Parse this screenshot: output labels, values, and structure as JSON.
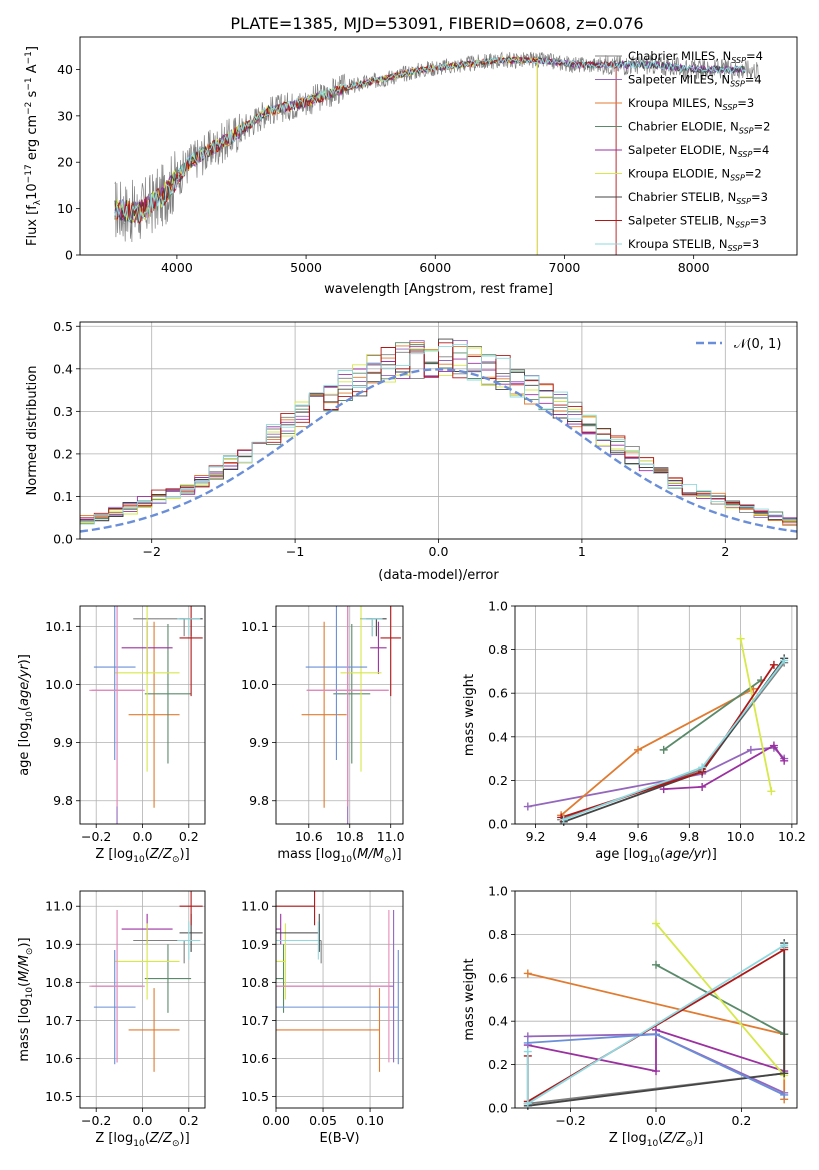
{
  "title": "PLATE=1385, MJD=53091, FIBERID=0608, z=0.076",
  "colors": {
    "Chabrier MILES": "#808080",
    "Salpeter MILES": "#9467bd",
    "Kroupa MILES": "#e07b30",
    "Chabrier ELODIE": "#5a8a6a",
    "Salpeter ELODIE": "#9b30a0",
    "Kroupa ELODIE": "#d6e84a",
    "Chabrier STELIB": "#444444",
    "Salpeter STELIB": "#b01818",
    "Kroupa STELIB": "#8fd9e0",
    "data": "#808080",
    "normal": "#6a8fd8",
    "extra_blue": "#6a8fd8",
    "extra_pink": "#e88ab8"
  },
  "chart_data": [
    {
      "type": "line",
      "id": "spectrum",
      "xlabel": "wavelength [Angstrom, rest frame]",
      "ylabel": "Flux [f$_\\lambda$10$^{-17}$ erg cm$^{-2}$ s$^{-1}$ A$^{-1}$]",
      "ylabel_text": "Flux [fλ10⁻¹⁷ erg cm⁻² s⁻¹ A⁻¹]",
      "xlim": [
        3250,
        8800
      ],
      "ylim": [
        0,
        47
      ],
      "xticks": [
        4000,
        5000,
        6000,
        7000,
        8000
      ],
      "yticks": [
        0,
        10,
        20,
        30,
        40
      ],
      "continuum_x": [
        3500,
        3700,
        3900,
        4100,
        4400,
        4700,
        5000,
        5300,
        5600,
        5900,
        6200,
        6500,
        6800,
        7100,
        7400,
        7700,
        8000,
        8300
      ],
      "continuum_y": [
        10,
        9,
        13,
        20,
        25,
        31,
        33,
        36,
        38,
        40,
        41,
        42,
        42,
        41,
        41,
        41,
        40,
        40
      ],
      "legend": [
        "Chabrier MILES, N$_{SSP}$=4",
        "Salpeter MILES, N$_{SSP}$=4",
        "Kroupa MILES, N$_{SSP}$=3",
        "Chabrier ELODIE, N$_{SSP}$=2",
        "Salpeter ELODIE, N$_{SSP}$=4",
        "Kroupa ELODIE, N$_{SSP}$=2",
        "Chabrier STELIB, N$_{SSP}$=3",
        "Salpeter STELIB, N$_{SSP}$=3",
        "Kroupa STELIB, N$_{SSP}$=3"
      ],
      "legend_labels": [
        [
          "Chabrier MILES, N",
          "SSP",
          "=4"
        ],
        [
          "Salpeter MILES, N",
          "SSP",
          "=4"
        ],
        [
          "Kroupa MILES, N",
          "SSP",
          "=3"
        ],
        [
          "Chabrier ELODIE, N",
          "SSP",
          "=2"
        ],
        [
          "Salpeter ELODIE, N",
          "SSP",
          "=4"
        ],
        [
          "Kroupa ELODIE, N",
          "SSP",
          "=2"
        ],
        [
          "Chabrier STELIB, N",
          "SSP",
          "=3"
        ],
        [
          "Salpeter STELIB, N",
          "SSP",
          "=3"
        ],
        [
          "Kroupa STELIB, N",
          "SSP",
          "=3"
        ]
      ],
      "legend_position": "upper right"
    },
    {
      "type": "histogram",
      "id": "residuals",
      "xlabel": "(data-model)/error",
      "ylabel": "Normed distribution",
      "xlim": [
        -2.5,
        2.5
      ],
      "ylim": [
        0,
        0.51
      ],
      "xticks": [
        -2,
        -1,
        0,
        1,
        2
      ],
      "yticks": [
        0.0,
        0.1,
        0.2,
        0.3,
        0.4,
        0.5
      ],
      "bin_width": 0.1,
      "reference": {
        "label": "$\\mathcal{N}(0,1)$",
        "label_text": "𝒩(0, 1)",
        "style": "dashed",
        "mean": 0,
        "sigma": 1
      },
      "legend_position": "upper right",
      "grid": true
    },
    {
      "type": "errorbar",
      "id": "age_vs_Z",
      "xlabel": "Z [log$_{10}$($Z/Z_\\odot$)]",
      "ylabel": "age  [log$_{10}$($age/yr$)]",
      "xlim": [
        -0.27,
        0.27
      ],
      "ylim": [
        9.76,
        10.135
      ],
      "xticks": [
        -0.2,
        0.0,
        0.2
      ],
      "yticks": [
        9.8,
        9.9,
        10.0,
        10.1
      ],
      "grid": true
    },
    {
      "type": "errorbar",
      "id": "age_vs_mass",
      "xlabel": "mass [log$_{10}$($M/M_\\odot$)]",
      "ylabel": "",
      "xlim": [
        10.44,
        11.06
      ],
      "ylim": [
        9.76,
        10.135
      ],
      "xticks": [
        10.6,
        10.8,
        11.0
      ],
      "yticks": [
        9.8,
        9.9,
        10.0,
        10.1
      ],
      "grid": true
    },
    {
      "type": "line",
      "id": "weight_vs_age",
      "xlabel": "age  [log$_{10}$($age/yr$)]",
      "ylabel": "mass weight",
      "xlim": [
        9.12,
        10.22
      ],
      "ylim": [
        0,
        1
      ],
      "xticks": [
        9.2,
        9.4,
        9.6,
        9.8,
        10.0,
        10.2
      ],
      "yticks": [
        0.0,
        0.2,
        0.4,
        0.6,
        0.8,
        1.0
      ],
      "grid": true,
      "series": [
        {
          "key": "Chabrier MILES",
          "x": [
            9.3,
            9.85,
            10.17
          ],
          "y": [
            0.02,
            0.25,
            0.74
          ]
        },
        {
          "key": "Salpeter MILES",
          "x": [
            9.17,
            9.85,
            10.04,
            10.13,
            10.17
          ],
          "y": [
            0.08,
            0.23,
            0.34,
            0.35,
            0.3
          ]
        },
        {
          "key": "Kroupa MILES",
          "x": [
            9.3,
            9.6,
            10.05
          ],
          "y": [
            0.04,
            0.34,
            0.62
          ]
        },
        {
          "key": "Chabrier ELODIE",
          "x": [
            9.7,
            10.08
          ],
          "y": [
            0.34,
            0.66
          ]
        },
        {
          "key": "Salpeter ELODIE",
          "x": [
            9.7,
            9.85,
            10.13,
            10.17
          ],
          "y": [
            0.16,
            0.17,
            0.36,
            0.29
          ]
        },
        {
          "key": "Kroupa ELODIE",
          "x": [
            10.0,
            10.12
          ],
          "y": [
            0.85,
            0.15
          ]
        },
        {
          "key": "Chabrier STELIB",
          "x": [
            9.31,
            9.85,
            10.17
          ],
          "y": [
            0.01,
            0.24,
            0.76
          ]
        },
        {
          "key": "Salpeter STELIB",
          "x": [
            9.3,
            9.85,
            10.13
          ],
          "y": [
            0.03,
            0.24,
            0.73
          ]
        },
        {
          "key": "Kroupa STELIB",
          "x": [
            9.31,
            9.85,
            10.17
          ],
          "y": [
            0.02,
            0.26,
            0.75
          ]
        }
      ]
    },
    {
      "type": "errorbar",
      "id": "mass_vs_Z",
      "xlabel": "Z [log$_{10}$($Z/Z_\\odot$)]",
      "ylabel": "mass [log$_{10}$($M/M_\\odot$)]",
      "xlim": [
        -0.27,
        0.27
      ],
      "ylim": [
        10.47,
        11.04
      ],
      "xticks": [
        -0.2,
        0.0,
        0.2
      ],
      "yticks": [
        10.5,
        10.6,
        10.7,
        10.8,
        10.9,
        11.0
      ],
      "grid": true
    },
    {
      "type": "errorbar",
      "id": "mass_vs_ebv",
      "xlabel": "E(B-V)",
      "ylabel": "",
      "xlim": [
        0.0,
        0.135
      ],
      "ylim": [
        10.47,
        11.04
      ],
      "xticks": [
        0.0,
        0.05,
        0.1
      ],
      "yticks": [
        10.5,
        10.6,
        10.7,
        10.8,
        10.9,
        11.0
      ],
      "grid": true
    },
    {
      "type": "line",
      "id": "weight_vs_Z",
      "xlabel": "Z [log$_{10}$($Z/Z_\\odot$)]",
      "ylabel": "mass weight",
      "xlim": [
        -0.33,
        0.33
      ],
      "ylim": [
        0,
        1
      ],
      "xticks": [
        -0.2,
        0.0,
        0.2
      ],
      "yticks": [
        0.0,
        0.2,
        0.4,
        0.6,
        0.8,
        1.0
      ],
      "grid": true,
      "series": [
        {
          "key": "Chabrier MILES",
          "x": [
            -0.3,
            0.3,
            0.3
          ],
          "y": [
            0.02,
            0.16,
            0.74
          ]
        },
        {
          "key": "Salpeter MILES",
          "x": [
            -0.3,
            0.0,
            0.3
          ],
          "y": [
            0.33,
            0.34,
            0.07
          ]
        },
        {
          "key": "Kroupa MILES",
          "x": [
            -0.3,
            0.3,
            0.3
          ],
          "y": [
            0.62,
            0.34,
            0.04
          ]
        },
        {
          "key": "Chabrier ELODIE",
          "x": [
            0.0,
            0.3
          ],
          "y": [
            0.66,
            0.34
          ]
        },
        {
          "key": "Salpeter ELODIE",
          "x": [
            -0.3,
            0.0,
            0.0,
            0.3
          ],
          "y": [
            0.29,
            0.17,
            0.36,
            0.17
          ]
        },
        {
          "key": "Kroupa ELODIE",
          "x": [
            0.0,
            0.3
          ],
          "y": [
            0.85,
            0.15
          ]
        },
        {
          "key": "Chabrier STELIB",
          "x": [
            -0.3,
            0.3,
            0.3
          ],
          "y": [
            0.01,
            0.16,
            0.76
          ]
        },
        {
          "key": "Salpeter STELIB",
          "x": [
            -0.3,
            -0.3,
            0.3
          ],
          "y": [
            0.24,
            0.03,
            0.73
          ]
        },
        {
          "key": "Kroupa STELIB",
          "x": [
            -0.3,
            -0.3,
            0.3
          ],
          "y": [
            0.26,
            0.02,
            0.75
          ]
        },
        {
          "key": "extra_blue",
          "x": [
            -0.3,
            0.0,
            0.3
          ],
          "y": [
            0.3,
            0.34,
            0.06
          ]
        }
      ]
    }
  ],
  "fits": [
    {
      "key": "Chabrier MILES",
      "Z": [
        0.18,
        0.22,
        0.0
      ],
      "age": [
        10.113,
        0.03,
        0.0
      ],
      "mass": [
        10.91,
        0.06,
        0.0
      ],
      "ebv": [
        0.048,
        0.0
      ]
    },
    {
      "key": "Salpeter MILES",
      "Z": [
        -0.11,
        0.11,
        0.11
      ],
      "age": [
        9.99,
        0.25,
        0.25
      ],
      "mass": [
        10.79,
        0.2,
        0.2
      ],
      "ebv": [
        0.125,
        0.0
      ]
    },
    {
      "key": "Kroupa MILES",
      "Z": [
        0.05,
        0.11,
        0.11
      ],
      "age": [
        9.948,
        0.16,
        0.16
      ],
      "mass": [
        10.675,
        0.11,
        0.11
      ],
      "ebv": [
        0.11,
        0.0
      ]
    },
    {
      "key": "Chabrier ELODIE",
      "Z": [
        0.11,
        0.1,
        0.1
      ],
      "age": [
        9.984,
        0.12,
        0.12
      ],
      "mass": [
        10.81,
        0.09,
        0.09
      ],
      "ebv": [
        0.008,
        0.0
      ]
    },
    {
      "key": "Salpeter ELODIE",
      "Z": [
        0.02,
        0.11,
        0.11
      ],
      "age": [
        10.063,
        0.045,
        0.045
      ],
      "mass": [
        10.94,
        0.04,
        0.04
      ],
      "ebv": [
        0.005,
        0.0
      ]
    },
    {
      "key": "Kroupa ELODIE",
      "Z": [
        0.02,
        0.14,
        0.14
      ],
      "age": [
        10.02,
        0.17,
        0.17
      ],
      "mass": [
        10.855,
        0.1,
        0.1
      ],
      "ebv": [
        0.01,
        0.0
      ]
    },
    {
      "key": "Chabrier STELIB",
      "Z": [
        0.21,
        0.05,
        0.05
      ],
      "age": [
        10.113,
        0.03,
        0.0
      ],
      "mass": [
        10.93,
        0.05,
        0.05
      ],
      "ebv": [
        0.046,
        0.0
      ]
    },
    {
      "key": "Salpeter STELIB",
      "Z": [
        0.21,
        0.05,
        0.05
      ],
      "age": [
        10.08,
        0.1,
        0.1
      ],
      "mass": [
        11.0,
        0.05,
        0.05
      ],
      "ebv": [
        0.041,
        0.0
      ]
    },
    {
      "key": "Kroupa STELIB",
      "Z": [
        0.2,
        0.05,
        0.05
      ],
      "age": [
        10.113,
        0.03,
        0.0
      ],
      "mass": [
        10.91,
        0.05,
        0.05
      ],
      "ebv": [
        0.045,
        0.0
      ]
    },
    {
      "key": "extra_blue",
      "Z": [
        -0.12,
        0.09,
        0.09
      ],
      "age": [
        10.03,
        0.16,
        0.16
      ],
      "mass": [
        10.735,
        0.15,
        0.15
      ],
      "ebv": [
        0.13,
        0.0
      ]
    },
    {
      "key": "extra_pink",
      "Z": [
        -0.11,
        0.12,
        0.12
      ],
      "age": [
        9.99,
        0.2,
        0.2
      ],
      "mass": [
        10.79,
        0.2,
        0.2
      ],
      "ebv": [
        0.12,
        0.0
      ]
    }
  ]
}
